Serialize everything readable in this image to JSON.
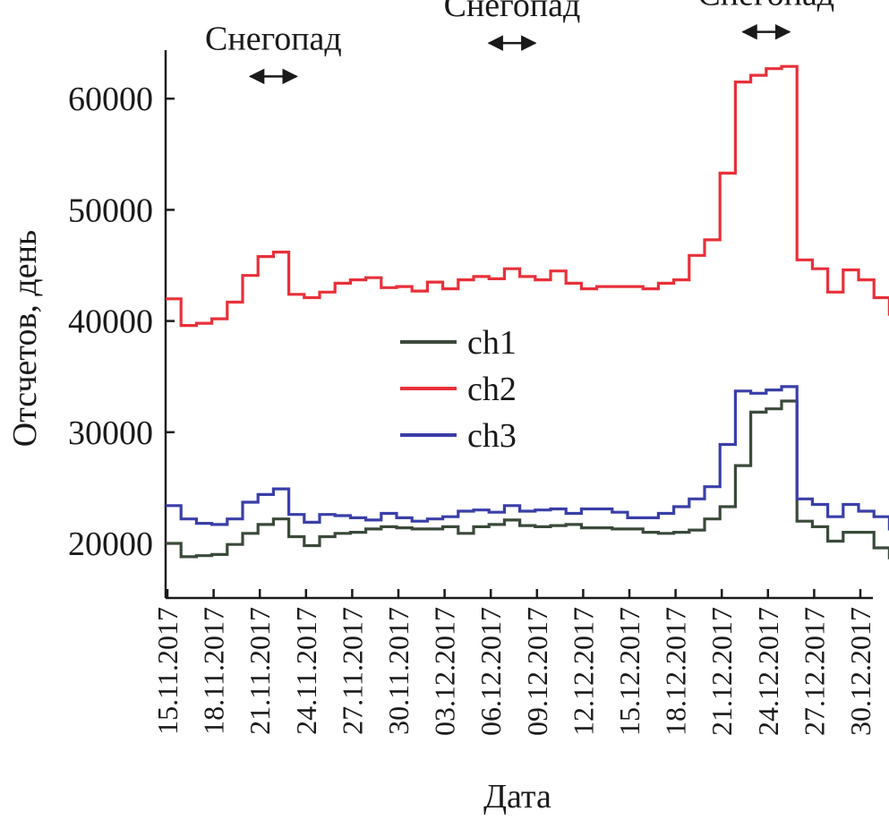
{
  "chart_data": {
    "type": "line",
    "step": true,
    "title": "",
    "xlabel": "Дата",
    "ylabel": "Отсчетов, день",
    "ylim": [
      15000,
      65000
    ],
    "yticks": [
      20000,
      30000,
      40000,
      50000,
      60000
    ],
    "ytick_labels": [
      "20000",
      "30000",
      "40000",
      "50000",
      "60000"
    ],
    "x_start": 0,
    "x_end": 47,
    "xtick_positions": [
      0,
      3,
      6,
      9,
      12,
      15,
      18,
      21,
      24,
      27,
      30,
      33,
      36,
      39,
      42,
      45
    ],
    "xtick_labels": [
      "15.11.2017",
      "18.11.2017",
      "21.11.2017",
      "24.11.2017",
      "27.11.2017",
      "30.11.2017",
      "03.12.2017",
      "06.12.2017",
      "09.12.2017",
      "12.12.2017",
      "15.12.2017",
      "18.12.2017",
      "21.12.2017",
      "24.12.2017",
      "27.12.2017",
      "30.12.2017"
    ],
    "legend": {
      "position": "center",
      "entries": [
        "ch1",
        "ch2",
        "ch3"
      ]
    },
    "series": [
      {
        "name": "ch1",
        "color": "#3a4a3a",
        "values": [
          20000,
          18800,
          18900,
          19000,
          19900,
          20900,
          21700,
          22200,
          20600,
          19800,
          20600,
          20900,
          21000,
          21300,
          21500,
          21400,
          21300,
          21300,
          21500,
          20900,
          21500,
          21700,
          22100,
          21600,
          21500,
          21600,
          21700,
          21400,
          21400,
          21300,
          21300,
          21000,
          20900,
          21000,
          21200,
          22200,
          23300,
          27000,
          31800,
          32100,
          32800,
          22000,
          21500,
          20200,
          21000,
          21000,
          19600,
          18700
        ]
      },
      {
        "name": "ch2",
        "color": "#e8303a",
        "values": [
          42000,
          39600,
          39800,
          40200,
          41700,
          44100,
          45800,
          46200,
          42400,
          42100,
          42600,
          43400,
          43700,
          43900,
          43000,
          43100,
          42700,
          43500,
          42900,
          43700,
          44000,
          43800,
          44700,
          44000,
          43700,
          44500,
          43400,
          42900,
          43100,
          43100,
          43100,
          42900,
          43400,
          43700,
          45900,
          47300,
          53300,
          61500,
          62100,
          62700,
          62900,
          45500,
          44700,
          42600,
          44600,
          43700,
          42100,
          40600
        ]
      },
      {
        "name": "ch3",
        "color": "#3a3fa8",
        "values": [
          23400,
          22200,
          21800,
          21700,
          22200,
          23700,
          24400,
          24900,
          22600,
          21900,
          22600,
          22500,
          22300,
          22100,
          22700,
          22300,
          22000,
          22200,
          22400,
          22900,
          23000,
          22800,
          23400,
          22900,
          23000,
          23100,
          22700,
          23100,
          23100,
          22800,
          22300,
          22300,
          22700,
          23300,
          24000,
          25100,
          28900,
          33700,
          33500,
          33800,
          34100,
          24000,
          23500,
          22400,
          23500,
          22900,
          22400,
          21300
        ]
      }
    ],
    "annotations": [
      {
        "text": "Снегопад",
        "x_from": 5.5,
        "x_to": 8.5,
        "value": 62000
      },
      {
        "text": "Снегопад",
        "x_from": 21,
        "x_to": 24,
        "value": 65000
      },
      {
        "text": "Снегопад",
        "x_from": 37.5,
        "x_to": 40.5,
        "value": 66000
      }
    ]
  }
}
